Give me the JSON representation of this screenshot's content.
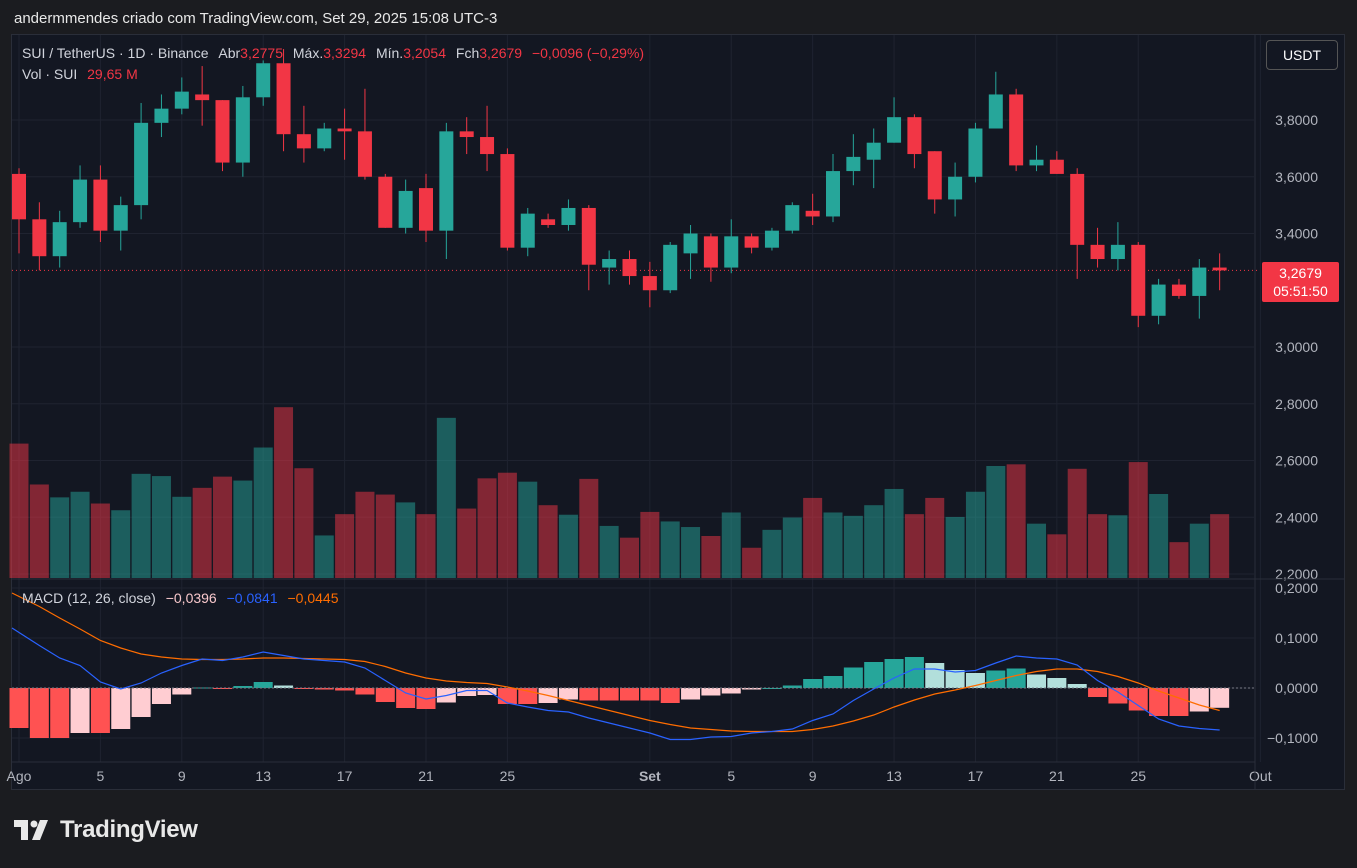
{
  "header": {
    "text": "andermmendes criado com TradingView.com, Set 29, 2025 15:08 UTC-3"
  },
  "legend": {
    "symbol": "SUI / TetherUS · 1D · Binance",
    "open_label": "Abr",
    "open": "3,2775",
    "high_label": "Máx.",
    "high": "3,3294",
    "low_label": "Mín.",
    "low": "3,2054",
    "close_label": "Fch",
    "close": "3,2679",
    "change": "−0,0096 (−0,29%)",
    "vol_label": "Vol · SUI",
    "vol": "29,65 M"
  },
  "currency_button": "USDT",
  "last_price": {
    "price": "3,2679",
    "countdown": "05:51:50"
  },
  "macd_legend": {
    "label": "MACD (12, 26, close)",
    "hist": "−0,0396",
    "macd": "−0,0841",
    "signal": "−0,0445"
  },
  "brand": {
    "name": "TradingView"
  },
  "colors": {
    "up": "#26a69a",
    "down": "#f23645",
    "macd": "#2962ff",
    "signal": "#ff6d00"
  },
  "chart_data": {
    "type": "candlestick",
    "price_axis": {
      "ticks": [
        {
          "v": 3.8,
          "label": "3,8000"
        },
        {
          "v": 3.6,
          "label": "3,6000"
        },
        {
          "v": 3.4,
          "label": "3,4000"
        },
        {
          "v": 3.0,
          "label": "3,0000"
        },
        {
          "v": 2.8,
          "label": "2,8000"
        },
        {
          "v": 2.6,
          "label": "2,6000"
        },
        {
          "v": 2.4,
          "label": "2,4000"
        },
        {
          "v": 2.2,
          "label": "2,2000"
        }
      ],
      "range": [
        2.18,
        4.12
      ]
    },
    "macd_axis": {
      "ticks": [
        {
          "v": 0.2,
          "label": "0,2000"
        },
        {
          "v": 0.1,
          "label": "0,1000"
        },
        {
          "v": 0.0,
          "label": "0,0000"
        },
        {
          "v": -0.1,
          "label": "−0,1000"
        }
      ],
      "range": [
        -0.115,
        0.2
      ]
    },
    "x_ticks": [
      {
        "i": 0,
        "label": "Ago"
      },
      {
        "i": 4,
        "label": "5"
      },
      {
        "i": 8,
        "label": "9"
      },
      {
        "i": 12,
        "label": "13"
      },
      {
        "i": 16,
        "label": "17"
      },
      {
        "i": 20,
        "label": "21"
      },
      {
        "i": 24,
        "label": "25"
      },
      {
        "i": 31,
        "label": "Set"
      },
      {
        "i": 35,
        "label": "5"
      },
      {
        "i": 39,
        "label": "9"
      },
      {
        "i": 43,
        "label": "13"
      },
      {
        "i": 47,
        "label": "17"
      },
      {
        "i": 51,
        "label": "21"
      },
      {
        "i": 55,
        "label": "25"
      },
      {
        "i": 61,
        "label": "Out"
      }
    ],
    "candles": [
      [
        3.61,
        3.63,
        3.33,
        3.45
      ],
      [
        3.45,
        3.51,
        3.27,
        3.32
      ],
      [
        3.32,
        3.48,
        3.28,
        3.44
      ],
      [
        3.44,
        3.64,
        3.42,
        3.59
      ],
      [
        3.59,
        3.64,
        3.37,
        3.41
      ],
      [
        3.41,
        3.53,
        3.34,
        3.5
      ],
      [
        3.5,
        3.86,
        3.45,
        3.79
      ],
      [
        3.79,
        3.89,
        3.74,
        3.84
      ],
      [
        3.84,
        3.95,
        3.82,
        3.9
      ],
      [
        3.89,
        3.99,
        3.78,
        3.87
      ],
      [
        3.87,
        3.87,
        3.62,
        3.65
      ],
      [
        3.65,
        3.92,
        3.6,
        3.88
      ],
      [
        3.88,
        4.01,
        3.85,
        4.0
      ],
      [
        4.0,
        4.05,
        3.69,
        3.75
      ],
      [
        3.75,
        3.85,
        3.65,
        3.7
      ],
      [
        3.7,
        3.79,
        3.69,
        3.77
      ],
      [
        3.77,
        3.84,
        3.66,
        3.76
      ],
      [
        3.76,
        3.91,
        3.59,
        3.6
      ],
      [
        3.6,
        3.61,
        3.42,
        3.42
      ],
      [
        3.42,
        3.59,
        3.4,
        3.55
      ],
      [
        3.56,
        3.61,
        3.37,
        3.41
      ],
      [
        3.41,
        3.79,
        3.31,
        3.76
      ],
      [
        3.76,
        3.81,
        3.68,
        3.74
      ],
      [
        3.74,
        3.85,
        3.62,
        3.68
      ],
      [
        3.68,
        3.7,
        3.34,
        3.35
      ],
      [
        3.35,
        3.49,
        3.32,
        3.47
      ],
      [
        3.45,
        3.47,
        3.42,
        3.43
      ],
      [
        3.43,
        3.52,
        3.41,
        3.49
      ],
      [
        3.49,
        3.5,
        3.2,
        3.29
      ],
      [
        3.28,
        3.34,
        3.22,
        3.31
      ],
      [
        3.31,
        3.34,
        3.22,
        3.25
      ],
      [
        3.25,
        3.3,
        3.14,
        3.2
      ],
      [
        3.2,
        3.37,
        3.19,
        3.36
      ],
      [
        3.33,
        3.43,
        3.24,
        3.4
      ],
      [
        3.39,
        3.4,
        3.23,
        3.28
      ],
      [
        3.28,
        3.45,
        3.26,
        3.39
      ],
      [
        3.39,
        3.4,
        3.33,
        3.35
      ],
      [
        3.35,
        3.42,
        3.34,
        3.41
      ],
      [
        3.41,
        3.51,
        3.4,
        3.5
      ],
      [
        3.48,
        3.54,
        3.43,
        3.46
      ],
      [
        3.46,
        3.68,
        3.44,
        3.62
      ],
      [
        3.62,
        3.75,
        3.57,
        3.67
      ],
      [
        3.66,
        3.77,
        3.56,
        3.72
      ],
      [
        3.72,
        3.88,
        3.72,
        3.81
      ],
      [
        3.81,
        3.82,
        3.63,
        3.68
      ],
      [
        3.69,
        3.69,
        3.47,
        3.52
      ],
      [
        3.52,
        3.65,
        3.46,
        3.6
      ],
      [
        3.6,
        3.79,
        3.58,
        3.77
      ],
      [
        3.77,
        3.97,
        3.77,
        3.89
      ],
      [
        3.89,
        3.91,
        3.62,
        3.64
      ],
      [
        3.64,
        3.71,
        3.62,
        3.66
      ],
      [
        3.66,
        3.69,
        3.61,
        3.61
      ],
      [
        3.61,
        3.63,
        3.24,
        3.36
      ],
      [
        3.36,
        3.42,
        3.28,
        3.31
      ],
      [
        3.31,
        3.44,
        3.27,
        3.36
      ],
      [
        3.36,
        3.37,
        3.07,
        3.11
      ],
      [
        3.11,
        3.24,
        3.08,
        3.22
      ],
      [
        3.22,
        3.24,
        3.17,
        3.18
      ],
      [
        3.18,
        3.31,
        3.1,
        3.28
      ],
      [
        3.28,
        3.33,
        3.2,
        3.27
      ]
    ],
    "volume": [
      240,
      167,
      144,
      154,
      133,
      121,
      186,
      182,
      145,
      161,
      181,
      174,
      233,
      305,
      196,
      76,
      114,
      154,
      149,
      135,
      114,
      286,
      124,
      178,
      188,
      172,
      130,
      113,
      177,
      93,
      72,
      118,
      101,
      91,
      75,
      117,
      54,
      86,
      108,
      143,
      117,
      111,
      130,
      159,
      114,
      143,
      109,
      154,
      200,
      203,
      97,
      78,
      195,
      114,
      112,
      207,
      150,
      64,
      97,
      114
    ],
    "macd": [
      0.12,
      0.085,
      0.06,
      0.045,
      0.012,
      -0.002,
      0.01,
      0.03,
      0.045,
      0.058,
      0.055,
      0.062,
      0.072,
      0.065,
      0.058,
      0.055,
      0.052,
      0.04,
      0.015,
      -0.01,
      -0.022,
      -0.015,
      -0.005,
      -0.005,
      -0.03,
      -0.038,
      -0.045,
      -0.048,
      -0.06,
      -0.07,
      -0.08,
      -0.09,
      -0.103,
      -0.103,
      -0.098,
      -0.097,
      -0.09,
      -0.087,
      -0.082,
      -0.065,
      -0.052,
      -0.025,
      -0.002,
      0.02,
      0.038,
      0.038,
      0.032,
      0.035,
      0.05,
      0.064,
      0.06,
      0.058,
      0.046,
      0.015,
      -0.008,
      -0.035,
      -0.062,
      -0.076,
      -0.081,
      -0.084
    ],
    "signal": [
      0.19,
      0.163,
      0.14,
      0.118,
      0.095,
      0.08,
      0.068,
      0.062,
      0.058,
      0.057,
      0.057,
      0.058,
      0.06,
      0.06,
      0.059,
      0.058,
      0.057,
      0.053,
      0.043,
      0.03,
      0.02,
      0.014,
      0.011,
      0.009,
      0.002,
      -0.006,
      -0.015,
      -0.025,
      -0.035,
      -0.045,
      -0.055,
      -0.065,
      -0.073,
      -0.08,
      -0.083,
      -0.086,
      -0.087,
      -0.087,
      -0.087,
      -0.083,
      -0.076,
      -0.066,
      -0.054,
      -0.038,
      -0.024,
      -0.012,
      -0.004,
      0.005,
      0.015,
      0.025,
      0.033,
      0.038,
      0.038,
      0.033,
      0.023,
      0.01,
      -0.006,
      -0.02,
      -0.034,
      -0.045
    ],
    "hist": [
      -0.08,
      -0.1,
      -0.1,
      -0.09,
      -0.09,
      -0.082,
      -0.058,
      -0.032,
      -0.013,
      0.001,
      -0.002,
      0.004,
      0.012,
      0.005,
      -0.001,
      -0.003,
      -0.005,
      -0.013,
      -0.028,
      -0.04,
      -0.042,
      -0.029,
      -0.016,
      -0.014,
      -0.032,
      -0.032,
      -0.03,
      -0.023,
      -0.025,
      -0.025,
      -0.025,
      -0.025,
      -0.03,
      -0.023,
      -0.015,
      -0.011,
      -0.003,
      0.0,
      0.005,
      0.018,
      0.024,
      0.041,
      0.052,
      0.058,
      0.062,
      0.05,
      0.036,
      0.03,
      0.035,
      0.039,
      0.027,
      0.02,
      0.008,
      -0.018,
      -0.031,
      -0.045,
      -0.056,
      -0.056,
      -0.047,
      -0.0396
    ]
  }
}
